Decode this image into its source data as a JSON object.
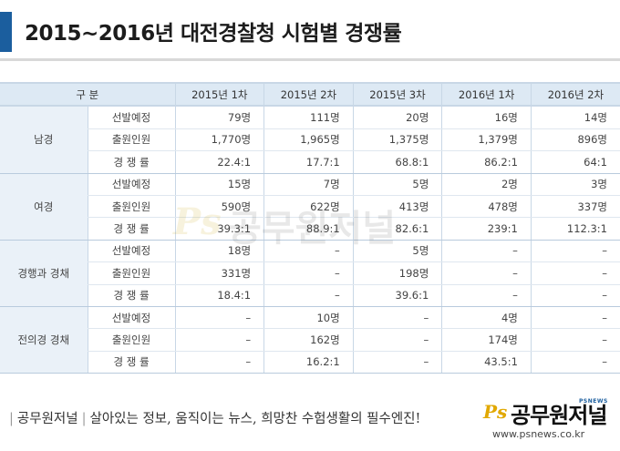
{
  "title": "2015~2016년 대전경찰청 시험별 경쟁률",
  "table": {
    "header": [
      "구  분",
      "2015년 1차",
      "2015년 2차",
      "2015년 3차",
      "2016년 1차",
      "2016년 2차"
    ],
    "groups": [
      {
        "name": "남경",
        "rows": [
          {
            "label": "선발예정",
            "values": [
              "79명",
              "111명",
              "20명",
              "16명",
              "14명"
            ]
          },
          {
            "label": "출원인원",
            "values": [
              "1,770명",
              "1,965명",
              "1,375명",
              "1,379명",
              "896명"
            ]
          },
          {
            "label": "경 쟁 률",
            "values": [
              "22.4:1",
              "17.7:1",
              "68.8:1",
              "86.2:1",
              "64:1"
            ]
          }
        ]
      },
      {
        "name": "여경",
        "rows": [
          {
            "label": "선발예정",
            "values": [
              "15명",
              "7명",
              "5명",
              "2명",
              "3명"
            ]
          },
          {
            "label": "출원인원",
            "values": [
              "590명",
              "622명",
              "413명",
              "478명",
              "337명"
            ]
          },
          {
            "label": "경 쟁 률",
            "values": [
              "39.3:1",
              "88.9:1",
              "82.6:1",
              "239:1",
              "112.3:1"
            ]
          }
        ]
      },
      {
        "name": "경행과 경채",
        "rows": [
          {
            "label": "선발예정",
            "values": [
              "18명",
              "–",
              "5명",
              "–",
              "–"
            ]
          },
          {
            "label": "출원인원",
            "values": [
              "331명",
              "–",
              "198명",
              "–",
              "–"
            ]
          },
          {
            "label": "경 쟁 률",
            "values": [
              "18.4:1",
              "–",
              "39.6:1",
              "–",
              "–"
            ]
          }
        ]
      },
      {
        "name": "전의경 경채",
        "rows": [
          {
            "label": "선발예정",
            "values": [
              "–",
              "10명",
              "–",
              "4명",
              "–"
            ]
          },
          {
            "label": "출원인원",
            "values": [
              "–",
              "162명",
              "–",
              "174명",
              "–"
            ]
          },
          {
            "label": "경 쟁 률",
            "values": [
              "–",
              "16.2:1",
              "–",
              "43.5:1",
              "–"
            ]
          }
        ]
      }
    ]
  },
  "watermark": {
    "ps": "Ps",
    "text": "공무원저널"
  },
  "footer": {
    "brand_left": "공무원저널",
    "slogan": "살아있는 정보, 움직이는 뉴스, 희망찬 수험생활의 필수엔진!",
    "logo_ps": "Ps",
    "logo_name": "공무원저널",
    "logo_sub": "PSNEWS",
    "url": "www.psnews.co.kr"
  },
  "colors": {
    "accent": "#1b5e9e",
    "header_bg": "#dde9f4",
    "group_bg": "#eaf1f8",
    "logo_gold": "#e1a800"
  }
}
